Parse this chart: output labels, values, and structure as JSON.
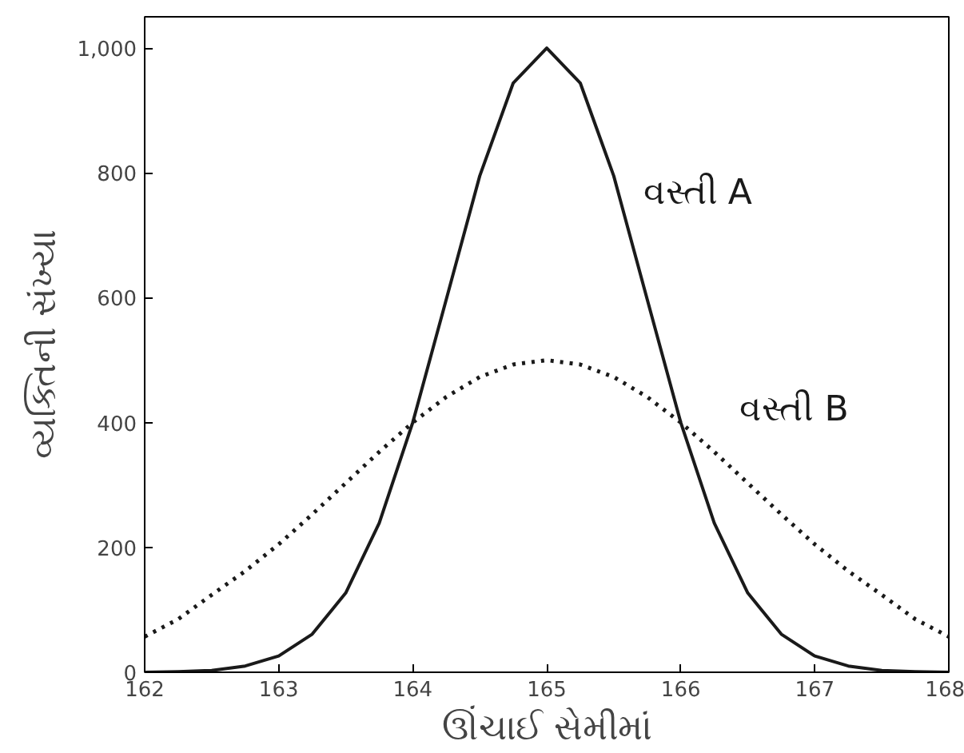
{
  "chart_data": {
    "type": "line",
    "xlabel": "ઊંચાઈ સેમીમાં",
    "ylabel": "વ્યક્તિની સંખ્યા",
    "xlim": [
      162,
      168
    ],
    "ylim": [
      0,
      1050
    ],
    "xticks": [
      162,
      163,
      164,
      165,
      166,
      167,
      168
    ],
    "yticks": [
      0,
      200,
      400,
      600,
      800,
      {
        "value": 1000,
        "label": "1,000"
      }
    ],
    "grid": false,
    "marker": "none",
    "x": [
      162,
      162.25,
      162.5,
      162.75,
      163,
      163.25,
      163.5,
      163.75,
      164,
      164.25,
      164.5,
      164.75,
      165,
      165.25,
      165.5,
      165.75,
      166,
      166.25,
      166.5,
      166.75,
      167,
      167.25,
      167.5,
      167.75,
      168
    ],
    "series": [
      {
        "name": "વસ્તી A",
        "color": "#1a1a1a",
        "line_style": "solid",
        "values": [
          0,
          1,
          3,
          10,
          26,
          61,
          127,
          239,
          400,
          597,
          795,
          944,
          1000,
          944,
          795,
          597,
          400,
          239,
          127,
          61,
          26,
          10,
          3,
          1,
          0
        ]
      },
      {
        "name": "વસ્તી B",
        "color": "#1a1a1a",
        "line_style": "dotted",
        "values": [
          57,
          85,
          124,
          162,
          205,
          253,
          303,
          353,
          400,
          441,
          473,
          493,
          500,
          493,
          473,
          441,
          400,
          353,
          303,
          253,
          205,
          162,
          124,
          85,
          57
        ]
      }
    ]
  }
}
